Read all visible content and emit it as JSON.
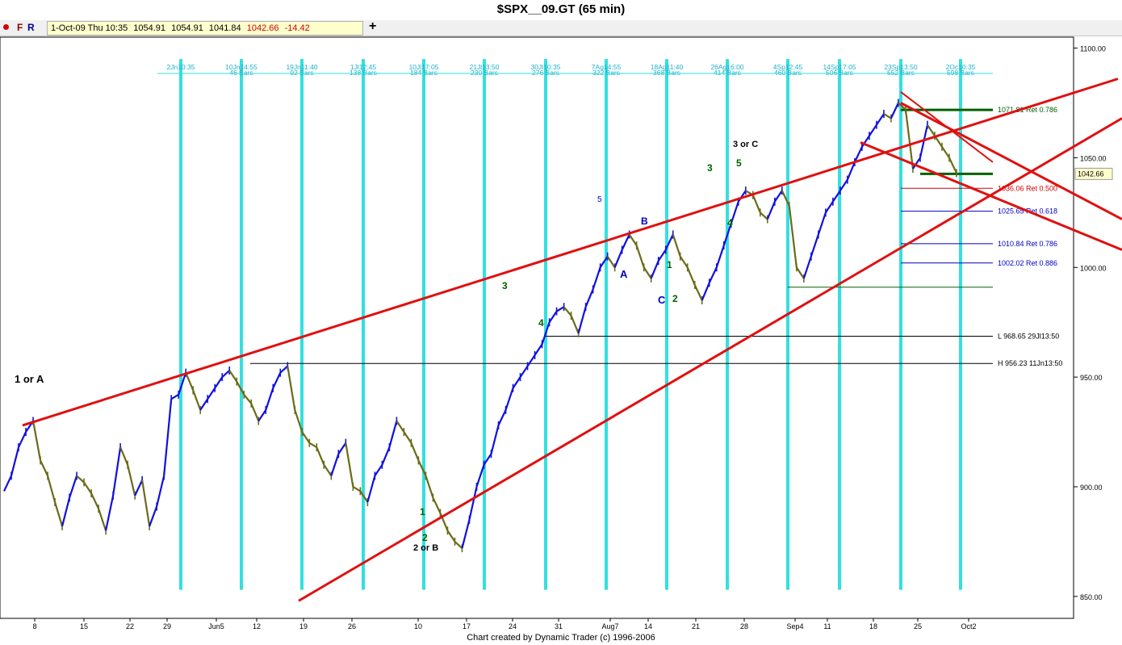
{
  "window": {
    "title": "$SPX__09.GT (65 min)"
  },
  "toolbar": {
    "buttons": [
      {
        "label": "F"
      },
      {
        "label": "R"
      }
    ],
    "quote": {
      "datetime": "1-Oct-09 Thu 10:35",
      "open": "1054.91",
      "high": "1054.91",
      "low": "1041.84",
      "close": "1042.66",
      "change": "-14.42"
    },
    "add_label": "+"
  },
  "footer": {
    "credit": "Chart created by Dynamic Trader  (c)  1996-2006"
  },
  "chart_data": {
    "type": "line",
    "title": "$SPX__09.GT (65 min)",
    "ylim": [
      840,
      1105
    ],
    "y_ticks": [
      "1100.00",
      "1050.00",
      "1000.00",
      "950.00",
      "900.00",
      "850.00"
    ],
    "x_ticks": [
      "8",
      "15",
      "22",
      "29",
      "Jun5",
      "12",
      "19",
      "26",
      "10",
      "17",
      "24",
      "31",
      "Aug7",
      "14",
      "21",
      "28",
      "Sep4",
      "11",
      "18",
      "25",
      "Oct2"
    ],
    "last_price": "1042.66",
    "series": [
      {
        "name": "",
        "values": [
          898,
          905,
          918,
          925,
          930,
          912,
          905,
          893,
          882,
          895,
          905,
          902,
          897,
          890,
          880,
          896,
          918,
          910,
          896,
          903,
          882,
          891,
          905,
          940,
          942,
          952,
          944,
          935,
          940,
          945,
          950,
          953,
          948,
          942,
          938,
          930,
          935,
          945,
          952,
          955,
          935,
          925,
          920,
          918,
          910,
          905,
          915,
          920,
          900,
          898,
          893,
          905,
          910,
          918,
          930,
          925,
          920,
          912,
          905,
          895,
          888,
          880,
          875,
          872,
          885,
          900,
          910,
          915,
          928,
          935,
          945,
          950,
          955,
          960,
          965,
          975,
          980,
          982,
          978,
          970,
          982,
          990,
          1000,
          1005,
          1000,
          1008,
          1015,
          1010,
          1000,
          995,
          1003,
          1008,
          1015,
          1005,
          1000,
          992,
          985,
          993,
          1000,
          1010,
          1020,
          1030,
          1035,
          1033,
          1025,
          1022,
          1030,
          1035,
          1028,
          1000,
          995,
          1005,
          1015,
          1025,
          1030,
          1035,
          1040,
          1048,
          1055,
          1060,
          1065,
          1070,
          1068,
          1075,
          1072,
          1045,
          1050,
          1065,
          1060,
          1055,
          1050,
          1043
        ]
      }
    ],
    "cycles": [
      {
        "label": "2Jn10:35",
        "sub": ""
      },
      {
        "label": "10Jn14:55",
        "sub": "46 Bars"
      },
      {
        "label": "19Jn11:40",
        "sub": "92 Bars"
      },
      {
        "label": "1Jl12:45",
        "sub": "138 Bars"
      },
      {
        "label": "10Jl17:05",
        "sub": "184 Bars"
      },
      {
        "label": "21Jl13:50",
        "sub": "230 Bars"
      },
      {
        "label": "30Jl10:35",
        "sub": "276 Bars"
      },
      {
        "label": "7Ag14:55",
        "sub": "322 Bars"
      },
      {
        "label": "18Ag11:40",
        "sub": "368 Bars"
      },
      {
        "label": "26Ag16:00",
        "sub": "414 Bars"
      },
      {
        "label": "4Sp12:45",
        "sub": "460 Bars"
      },
      {
        "label": "14Sp17:05",
        "sub": "506 Bars"
      },
      {
        "label": "23Sp13:50",
        "sub": "552 Bars"
      },
      {
        "label": "2Oc10:35",
        "sub": "598 Bars"
      }
    ],
    "levels": [
      {
        "label": "1071.81 Ret 0.786",
        "value": 1071.81,
        "color": "#006000"
      },
      {
        "label": "1036.06 Ret 0.500",
        "value": 1036.06,
        "color": "#d00000"
      },
      {
        "label": "1025.65 Ret 0.618",
        "value": 1025.65,
        "color": "#0000c0"
      },
      {
        "label": "1010.84 Ret 0.786",
        "value": 1010.84,
        "color": "#0000c0"
      },
      {
        "label": "1002.02 Ret 0.886",
        "value": 1002.02,
        "color": "#0000c0"
      },
      {
        "label": "L 968.65 29Jl13:50",
        "value": 968.65,
        "color": "#000000"
      },
      {
        "label": "H 956.23 11Jn13:50",
        "value": 956.23,
        "color": "#000000"
      }
    ],
    "annotations": [
      {
        "text": "1 or A",
        "color": "#000000"
      },
      {
        "text": "2 or B",
        "color": "#000000"
      },
      {
        "text": "3 or C",
        "color": "#000000"
      },
      {
        "text": "3",
        "color": "#006000"
      },
      {
        "text": "4",
        "color": "#006000"
      },
      {
        "text": "5",
        "color": "#0000c0"
      },
      {
        "text": "A",
        "color": "#0000c0"
      },
      {
        "text": "B",
        "color": "#0000c0"
      },
      {
        "text": "C",
        "color": "#0000c0"
      },
      {
        "text": "1",
        "color": "#006000"
      },
      {
        "text": "2",
        "color": "#006000"
      },
      {
        "text": "3",
        "color": "#006000"
      },
      {
        "text": "4",
        "color": "#006000"
      },
      {
        "text": "5",
        "color": "#006000"
      },
      {
        "text": "1",
        "color": "#006000"
      },
      {
        "text": "2",
        "color": "#006000"
      }
    ],
    "colors": {
      "up": "#1010e0",
      "down": "#6b6b1a",
      "cycle": "#33e0e0",
      "trend": "#e01010",
      "grid": "#000000"
    }
  }
}
